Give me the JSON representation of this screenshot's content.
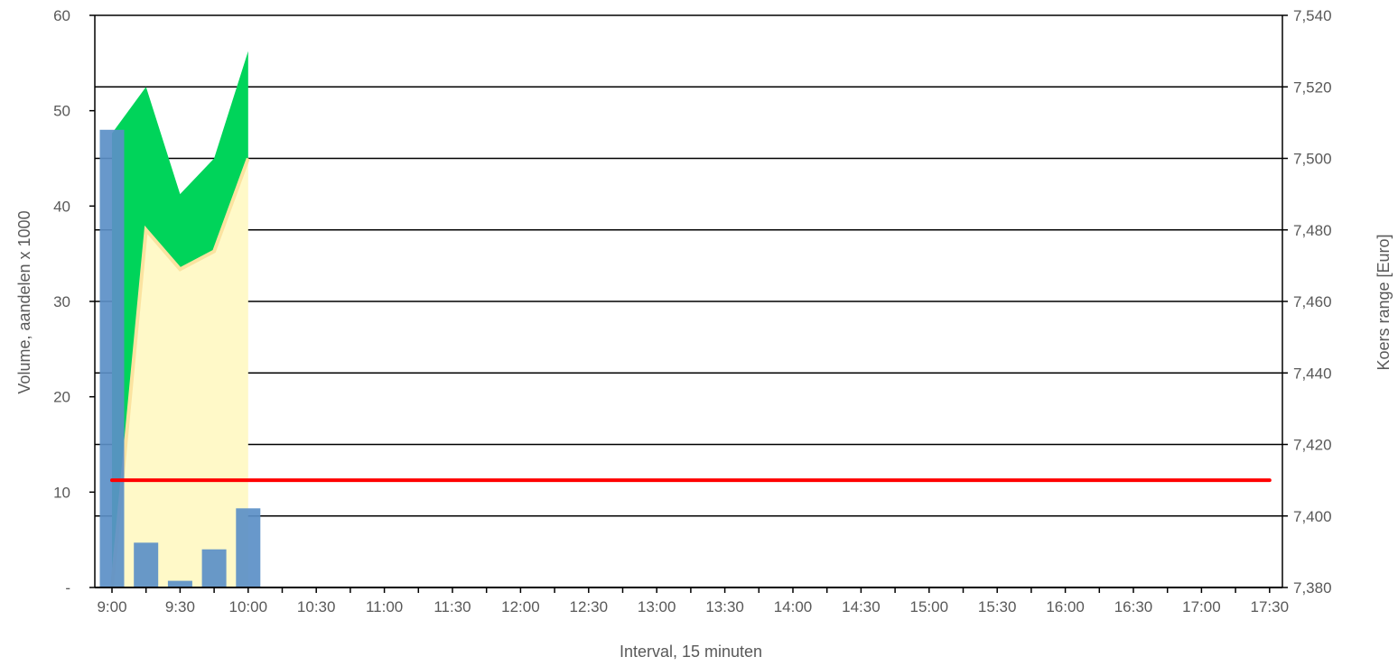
{
  "chart_data": {
    "type": "bar+area+line",
    "xlabel": "Interval, 15 minuten",
    "ylabel_left": "Volume, aandelen x 1000",
    "ylabel_right": "Koers range [Euro]",
    "x_ticks": [
      "9:00",
      "9:30",
      "10:00",
      "10:30",
      "11:00",
      "11:30",
      "12:00",
      "12:30",
      "13:00",
      "13:30",
      "14:00",
      "14:30",
      "15:00",
      "15:30",
      "16:00",
      "16:30",
      "17:00",
      "17:30"
    ],
    "y_left_ticks": [
      "-",
      "10",
      "20",
      "30",
      "40",
      "50",
      "60"
    ],
    "y_right_ticks": [
      "7,380",
      "7,400",
      "7,420",
      "7,440",
      "7,460",
      "7,480",
      "7,500",
      "7,520",
      "7,540"
    ],
    "y_left_range": [
      0,
      60
    ],
    "y_right_range": [
      7.38,
      7.54
    ],
    "intervals": [
      "9:00",
      "9:15",
      "9:30",
      "9:45",
      "10:00"
    ],
    "volume": {
      "name": "Volume",
      "color": "#5b8fc7",
      "values": [
        48,
        4.7,
        0.7,
        4.0,
        8.3
      ]
    },
    "price_high": {
      "color": "#00d45a",
      "values": [
        7.507,
        7.52,
        7.49,
        7.5,
        7.53
      ]
    },
    "price_low": {
      "color": "#fff9c8",
      "stroke": "#fbe3a0",
      "values": [
        7.38,
        7.48,
        7.469,
        7.474,
        7.5
      ]
    },
    "reference_line": {
      "color": "#ff0000",
      "value": 7.41,
      "from": "9:00",
      "to": "17:30"
    },
    "gridlines": [
      7.4,
      7.42,
      7.44,
      7.46,
      7.48,
      7.5,
      7.52
    ]
  }
}
